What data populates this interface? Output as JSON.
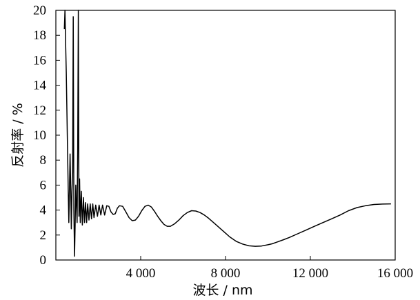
{
  "chart_data": {
    "type": "line",
    "xlabel": "波长 / nm",
    "ylabel": "反射率 / %",
    "xlim": [
      0,
      16000
    ],
    "ylim": [
      0,
      20
    ],
    "x_ticks": [
      4000,
      8000,
      12000,
      16000
    ],
    "x_tick_labels": [
      "4 000",
      "8 000",
      "12 000",
      "16 000"
    ],
    "y_ticks": [
      0,
      2,
      4,
      6,
      8,
      10,
      12,
      14,
      16,
      18,
      20
    ],
    "y_tick_labels": [
      "0",
      "2",
      "4",
      "6",
      "8",
      "10",
      "12",
      "14",
      "16",
      "18",
      "20"
    ],
    "grid": false,
    "series": [
      {
        "color": "#000000",
        "x": [
          400,
          430,
          460,
          490,
          520,
          550,
          580,
          610,
          640,
          670,
          700,
          730,
          760,
          790,
          820,
          850,
          880,
          910,
          940,
          970,
          1000,
          1030,
          1060,
          1090,
          1120,
          1150,
          1200,
          1250,
          1300,
          1350,
          1400,
          1450,
          1500,
          1560,
          1620,
          1680,
          1740,
          1800,
          1880,
          1960,
          2040,
          2120,
          2200,
          2300,
          2400,
          2500,
          2600,
          2700,
          2800,
          2900,
          3000,
          3150,
          3300,
          3450,
          3600,
          3750,
          3900,
          4050,
          4200,
          4350,
          4500,
          4650,
          4800,
          4950,
          5100,
          5250,
          5400,
          5600,
          5800,
          6000,
          6200,
          6400,
          6600,
          6800,
          7000,
          7200,
          7400,
          7600,
          7800,
          8000,
          8200,
          8500,
          8800,
          9100,
          9400,
          9700,
          10000,
          10200,
          10400,
          10700,
          11000,
          11400,
          11800,
          12200,
          12600,
          13000,
          13400,
          13800,
          14200,
          14600,
          15000,
          15400,
          15800
        ],
        "y": [
          18.5,
          20,
          17.5,
          15,
          12,
          9,
          6,
          3,
          5.5,
          8.5,
          6,
          2.5,
          5.5,
          7,
          19.5,
          4,
          0.3,
          3,
          6,
          4.5,
          3,
          9,
          20,
          3.5,
          6.5,
          3,
          5.5,
          2.8,
          5,
          3,
          4.6,
          3,
          4.5,
          3.2,
          4.5,
          3.3,
          4.5,
          3.4,
          4.4,
          3.5,
          4.4,
          3.6,
          4.4,
          3.6,
          4.35,
          4.3,
          3.85,
          3.65,
          3.7,
          4.15,
          4.35,
          4.3,
          3.85,
          3.4,
          3.15,
          3.2,
          3.5,
          3.95,
          4.3,
          4.4,
          4.25,
          3.9,
          3.5,
          3.15,
          2.85,
          2.7,
          2.7,
          2.9,
          3.2,
          3.55,
          3.8,
          3.95,
          3.92,
          3.8,
          3.6,
          3.35,
          3.05,
          2.75,
          2.45,
          2.15,
          1.85,
          1.5,
          1.28,
          1.14,
          1.1,
          1.12,
          1.22,
          1.3,
          1.42,
          1.6,
          1.8,
          2.1,
          2.4,
          2.7,
          3.0,
          3.3,
          3.6,
          3.95,
          4.2,
          4.35,
          4.45,
          4.48,
          4.5
        ]
      }
    ]
  }
}
